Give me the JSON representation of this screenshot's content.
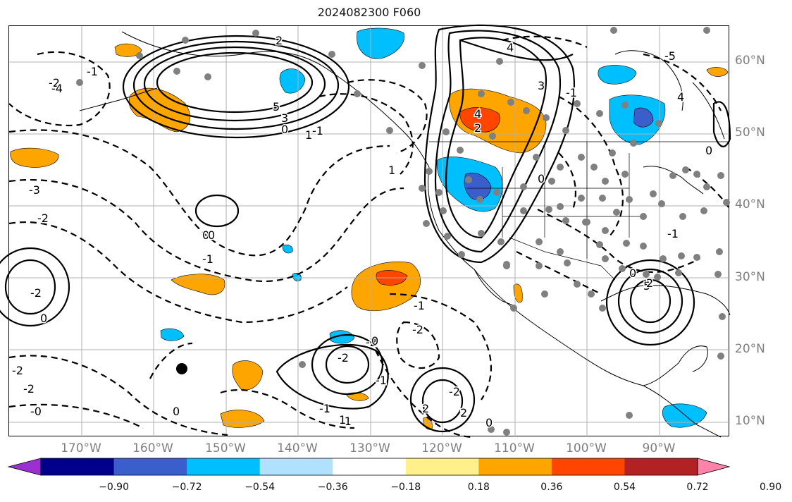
{
  "title": "2024082300 F060",
  "lat_labels": [
    "60°N",
    "50°N",
    "40°N",
    "30°N",
    "20°N",
    "10°N"
  ],
  "lon_labels": [
    "170°W",
    "160°W",
    "150°W",
    "140°W",
    "130°W",
    "120°W",
    "110°W",
    "100°W",
    "90°W"
  ],
  "colorbar": {
    "tick_labels": [
      "−0.90",
      "−0.72",
      "−0.54",
      "−0.36",
      "−0.18",
      "0.18",
      "0.36",
      "0.54",
      "0.72",
      "0.90"
    ],
    "colors": [
      "#9b30d0",
      "#00008b",
      "#3a5fcd",
      "#00bfff",
      "#b0e2ff",
      "#ffffff",
      "#fff08c",
      "#ffa500",
      "#ff4500",
      "#b22222",
      "#ff82ab"
    ]
  },
  "contour_labels": [
    "4",
    "2",
    "2",
    "4",
    "5",
    "3",
    "0",
    "-1",
    "-3",
    "-2",
    "0",
    "-1",
    "-2",
    "0",
    "-2",
    "-2",
    "-1",
    "-0",
    "-2",
    "-2",
    "-1",
    "0",
    "2",
    "-2",
    "-1",
    "0",
    "2",
    "-1",
    "-2",
    "1",
    "1",
    "-2",
    "-1",
    "0",
    "4",
    "3",
    "-1",
    "0",
    "5",
    "-5",
    "-4",
    "0",
    "-1",
    "2",
    "1",
    "0",
    "0"
  ]
}
